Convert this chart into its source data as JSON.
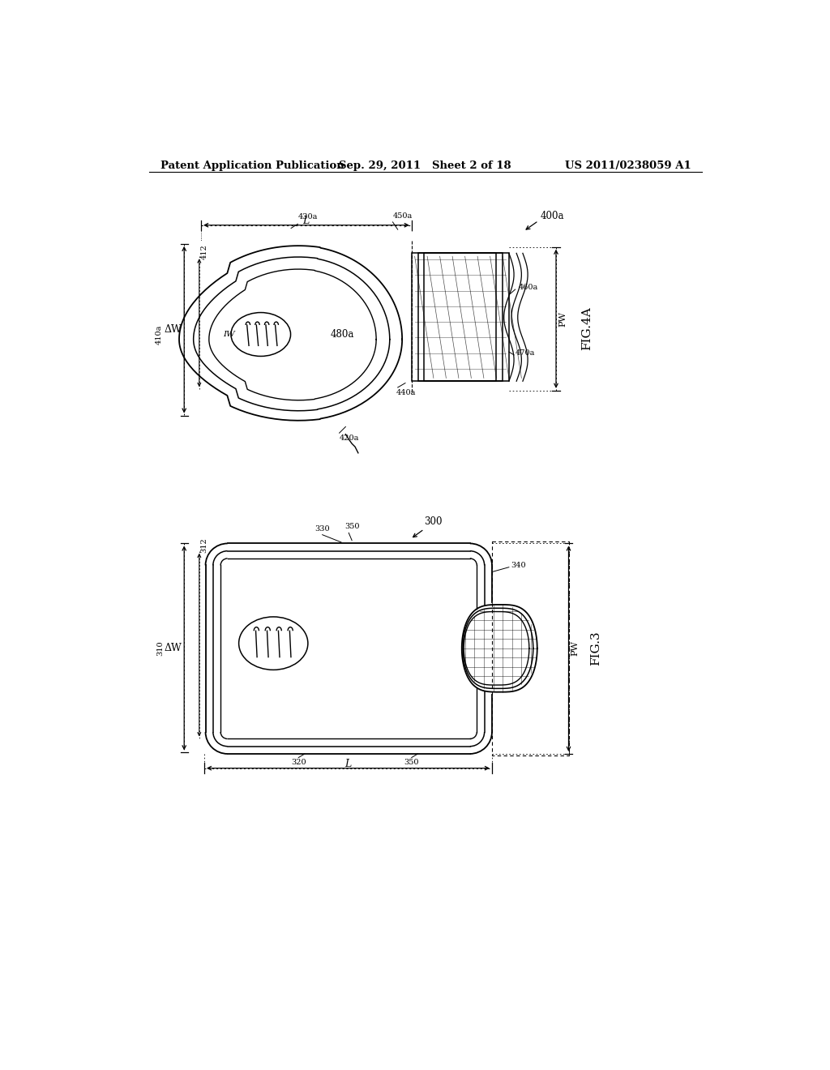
{
  "bg_color": "#ffffff",
  "line_color": "#000000",
  "header_left": "Patent Application Publication",
  "header_center": "Sep. 29, 2011   Sheet 2 of 18",
  "header_right": "US 2011/0238059 A1",
  "fig4a_label": "FIG.4A",
  "fig3_label": "FIG.3"
}
